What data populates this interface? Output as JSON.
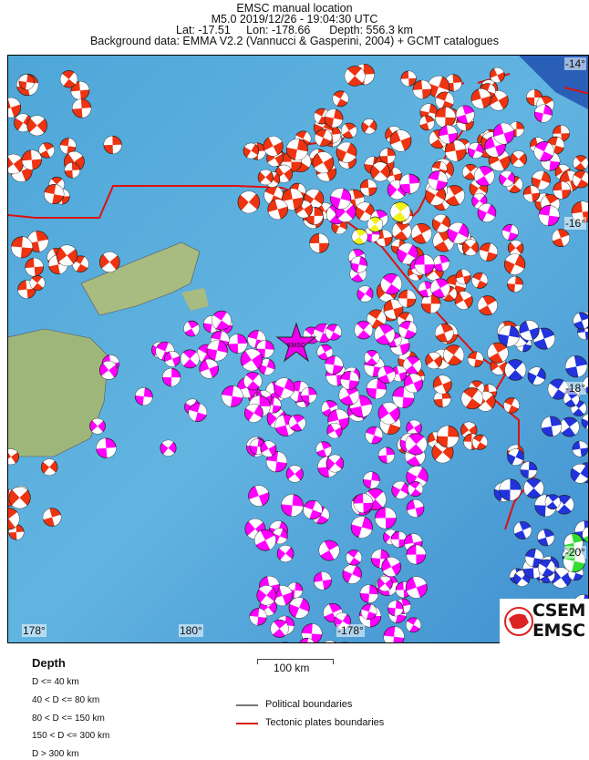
{
  "header": {
    "title": "EMSC manual location",
    "event": "M5.0  2019/12/26 - 19:04:30 UTC",
    "location": "Lat: -17.51     Lon: -178.66      Depth: 556.3 km",
    "background": "Background data: EMMA V2.2 (Vannucci & Gasperini, 2004) + GCMT catalogues"
  },
  "map": {
    "epicenter_label": "EMSC",
    "lat_ticks": [
      "-14°",
      "-16°",
      "-18°",
      "-20°"
    ],
    "lon_ticks": [
      "178°",
      "180°",
      "-178°"
    ],
    "depth_colors": {
      "shallow": "#ee3311",
      "intermediate": "#f2f21a",
      "mid": "#ff00ff",
      "deep": "#ff00ff",
      "very_deep": "#2233dd",
      "other": "#33dd33"
    },
    "plate_boundary_color": "#dd1111",
    "political_boundary_color": "#777777"
  },
  "legend": {
    "depth_title": "Depth",
    "depth_items": [
      "D <= 40 km",
      "40 < D <= 80 km",
      "80 < D <= 150 km",
      "150 < D <= 300 km",
      "D > 300 km"
    ],
    "scale_label": "100 km",
    "political": "Political boundaries",
    "tectonic": "Tectonic plates boundaries"
  },
  "logo": {
    "line1": "CSEM",
    "line2": "EMSC"
  }
}
